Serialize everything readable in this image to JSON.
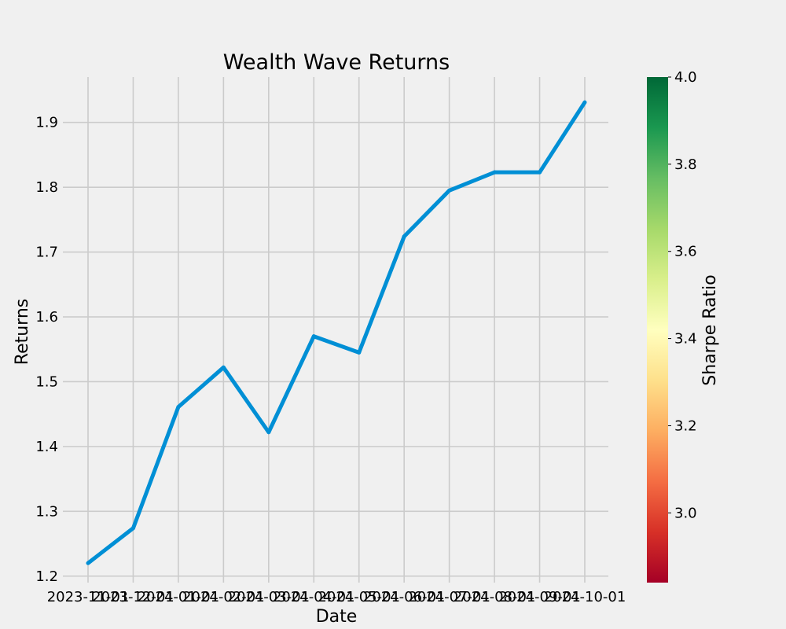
{
  "chart_data": {
    "type": "line",
    "title": "Wealth Wave Returns",
    "xlabel": "Date",
    "ylabel": "Returns",
    "x": [
      "2023-11-01",
      "2023-12-01",
      "2024-01-01",
      "2024-02-01",
      "2024-03-01",
      "2024-04-01",
      "2024-05-01",
      "2024-06-01",
      "2024-07-01",
      "2024-08-01",
      "2024-09-01",
      "2024-10-01"
    ],
    "series": [
      {
        "values": [
          1.22,
          1.274,
          1.461,
          1.522,
          1.422,
          1.57,
          1.545,
          1.724,
          1.795,
          1.823,
          1.823,
          1.931
        ]
      }
    ],
    "ylim": [
      1.19,
      1.97
    ],
    "yticks": [
      "1.2",
      "1.3",
      "1.4",
      "1.5",
      "1.6",
      "1.7",
      "1.8",
      "1.9"
    ],
    "grid": true,
    "line_color": "#008fd5",
    "colorbar": {
      "label": "Sharpe Ratio",
      "range": [
        2.84,
        4.0
      ],
      "ticks": [
        "3.0",
        "3.2",
        "3.4",
        "3.6",
        "3.8",
        "4.0"
      ],
      "colormap": "RdYlGn"
    }
  }
}
